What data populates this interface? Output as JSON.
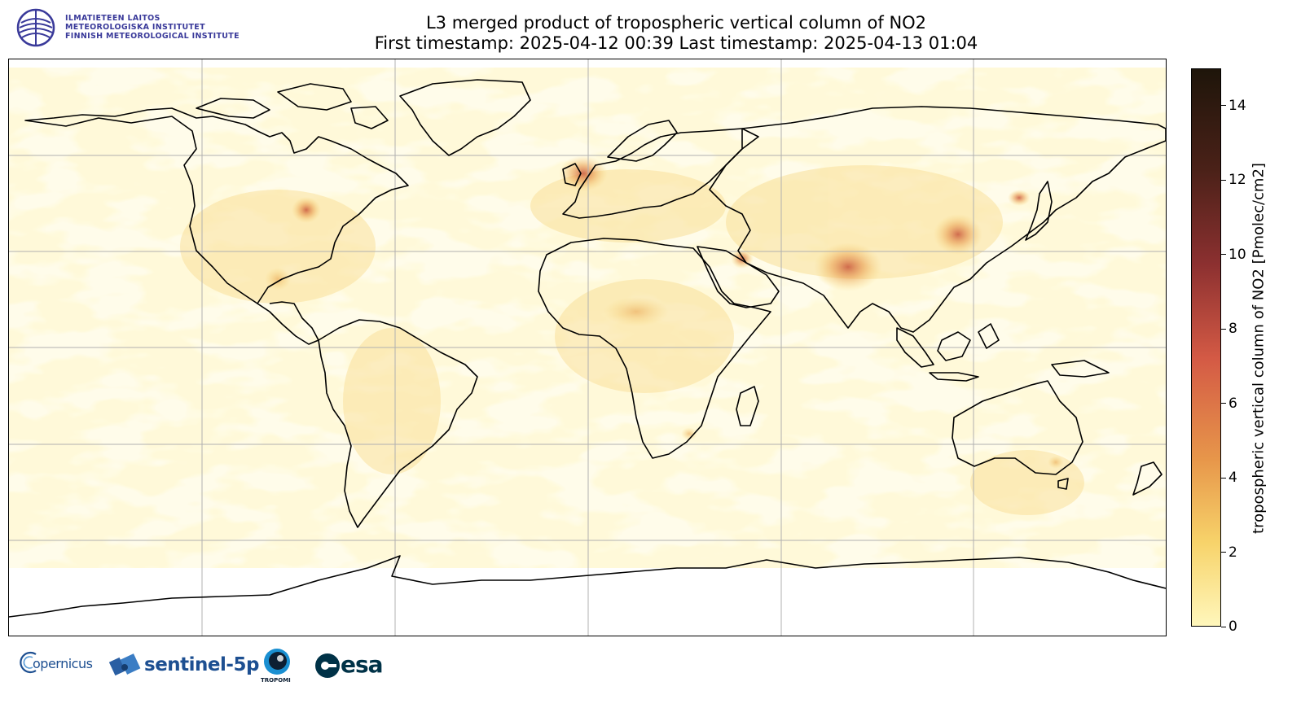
{
  "header": {
    "title_line1": "L3 merged product of tropospheric vertical column of NO2",
    "title_line2": "First timestamp: 2025-04-12 00:39   Last timestamp: 2025-04-13 01:04"
  },
  "institute": {
    "line1": "ILMATIETEEN LAITOS",
    "line2": "METEOROLOGISKA INSTITUTET",
    "line3": "FINNISH METEOROLOGICAL INSTITUTE",
    "color": "#3a3a9a"
  },
  "colorbar": {
    "label": "tropospheric vertical column of NO2 [Pmolec/cm2]",
    "range": [
      0,
      15
    ],
    "ticks": [
      0,
      2,
      4,
      6,
      8,
      10,
      12,
      14
    ],
    "colors": [
      "#fff7bc",
      "#f7d36a",
      "#e7964a",
      "#d45a45",
      "#8c3030",
      "#4a2118",
      "#1e150a"
    ]
  },
  "map": {
    "projection": "plate-carree",
    "grid": true,
    "gridlines_lon": [
      -120,
      -60,
      0,
      60,
      120
    ],
    "gridlines_lat": [
      60,
      30,
      0,
      -30,
      -60
    ]
  },
  "footer_logos": {
    "copernicus": "opernicus",
    "sentinel": "sentinel-5p",
    "tropomi": "TROPOMI",
    "esa": "esa"
  }
}
